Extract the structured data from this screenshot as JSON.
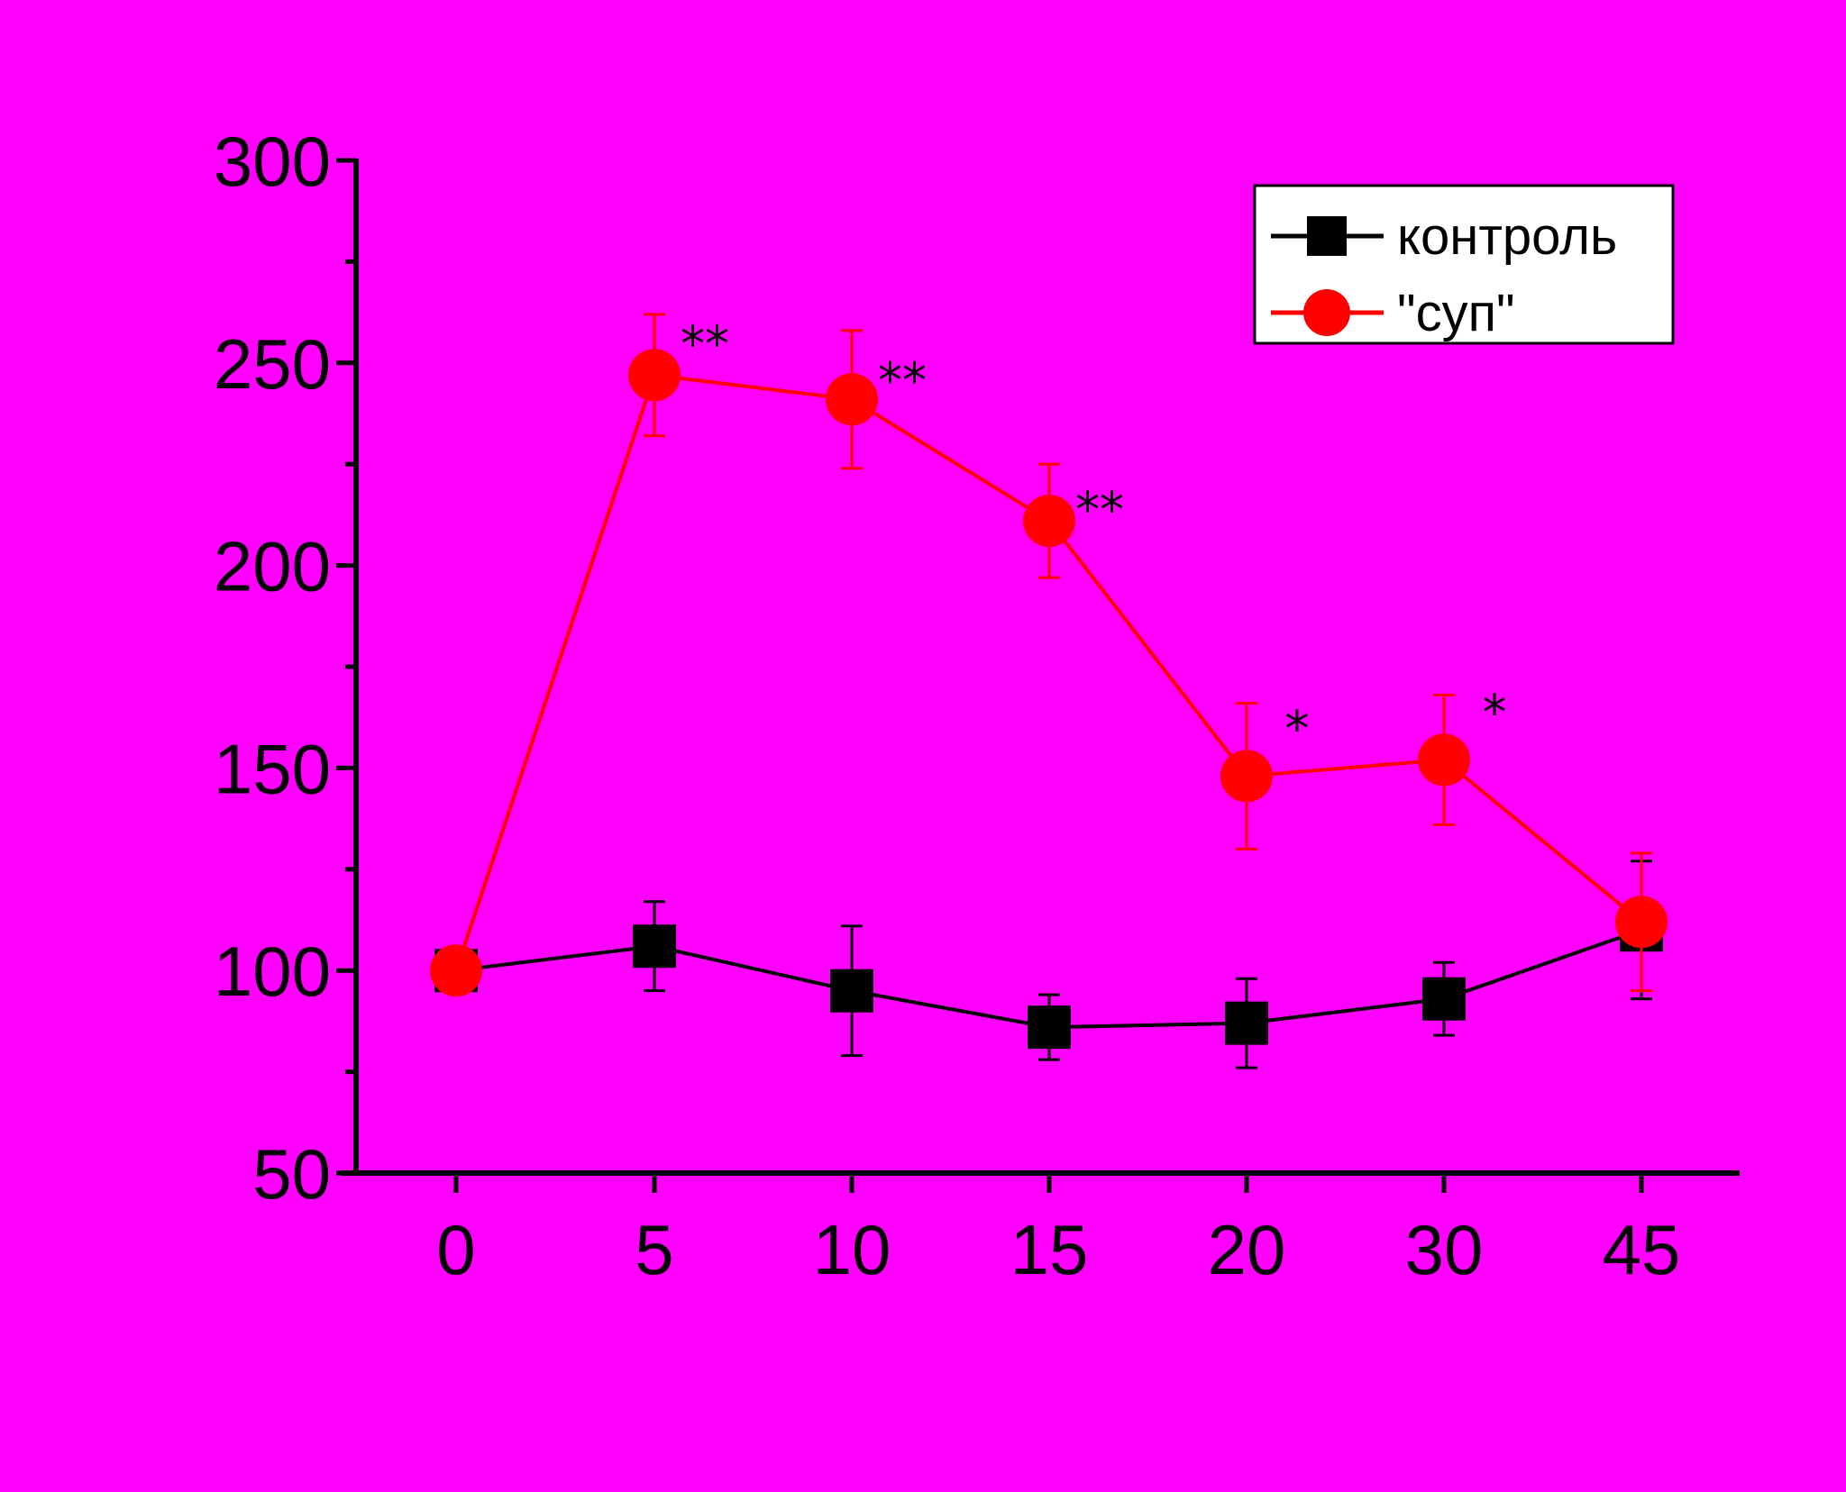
{
  "chart_data": {
    "type": "line",
    "title": "",
    "xlabel": "",
    "ylabel": "",
    "categories": [
      "0",
      "5",
      "10",
      "15",
      "20",
      "30",
      "45"
    ],
    "ylim": [
      50,
      300
    ],
    "yticks": [
      50,
      100,
      150,
      200,
      250,
      300
    ],
    "background": "#ff00ff",
    "legend_position": "top-right",
    "series": [
      {
        "name": "контроль",
        "color": "#000000",
        "marker": "square",
        "values": [
          100,
          106,
          95,
          86,
          87,
          93,
          110
        ],
        "errors": [
          4,
          11,
          16,
          8,
          11,
          9,
          17
        ]
      },
      {
        "name": "\"суп\"",
        "color": "#ff0000",
        "marker": "circle",
        "values": [
          100,
          247,
          241,
          211,
          148,
          152,
          112
        ],
        "errors": [
          4,
          15,
          17,
          14,
          18,
          16,
          17
        ]
      }
    ],
    "annotations": [
      {
        "category": "5",
        "y": 255,
        "text": "**"
      },
      {
        "category": "10",
        "y": 246,
        "text": "**"
      },
      {
        "category": "15",
        "y": 214,
        "text": "**"
      },
      {
        "category": "20",
        "y": 160,
        "text": "*"
      },
      {
        "category": "30",
        "y": 164,
        "text": "*"
      }
    ]
  }
}
